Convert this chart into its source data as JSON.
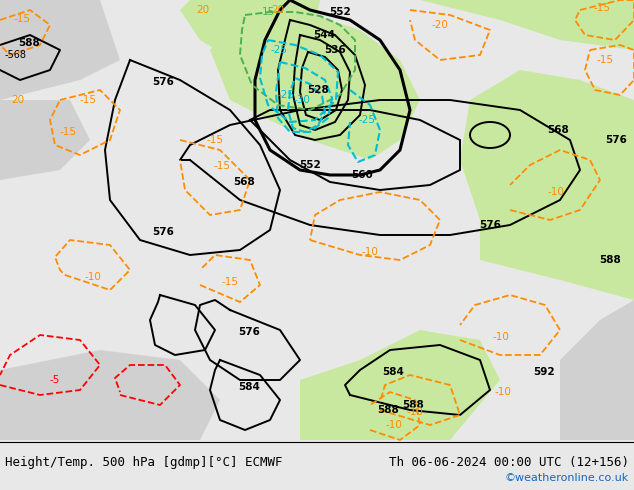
{
  "title_left": "Height/Temp. 500 hPa [gdmp][°C] ECMWF",
  "title_right": "Th 06-06-2024 00:00 UTC (12+156)",
  "credit": "©weatheronline.co.uk",
  "bg_color": "#e8e8e8",
  "land_green_color": "#c8e8a0",
  "land_gray_color": "#d0d0d0",
  "contour_black_color": "#000000",
  "contour_orange_color": "#ff8c00",
  "contour_cyan_color": "#00bcd4",
  "contour_red_color": "#ff0000",
  "contour_green_color": "#4caf50",
  "label_fontsize": 7.5,
  "title_fontsize": 9,
  "credit_fontsize": 8,
  "figsize": [
    6.34,
    4.9
  ],
  "dpi": 100
}
